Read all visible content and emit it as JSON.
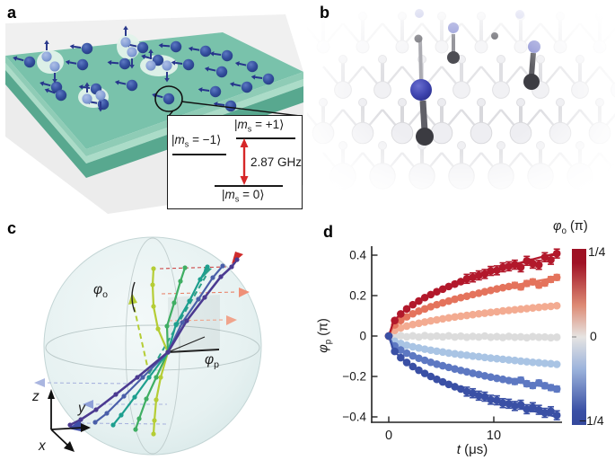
{
  "panels": {
    "a_label": "a",
    "b_label": "b",
    "c_label": "c",
    "d_label": "d"
  },
  "panel_a": {
    "inset": {
      "minus1": {
        "bar": "|",
        "m": "m",
        "sub": "s",
        "rest": " = −1⟩"
      },
      "plus1": {
        "bar": "|",
        "m": "m",
        "sub": "s",
        "rest": " = +1⟩"
      },
      "zero": {
        "bar": "|",
        "m": "m",
        "sub": "s",
        "rest": " = 0⟩"
      },
      "freq": "2.87 GHz",
      "arrow_color": "#d62728"
    },
    "colors": {
      "slab_top": "#79c2ab",
      "slab_rim": "#abdcc8",
      "slab_front": "#58a88f",
      "base": "#ececec",
      "spin_dark": "#35509f",
      "spin_light": "#8aa3d8"
    }
  },
  "panel_b": {
    "colors": {
      "lattice": "#ededf1",
      "nitrogen_blue": "#3f45b0",
      "vacancy_dark": "#3b3b41",
      "faint_purple": "#9ba0da"
    }
  },
  "panel_c": {
    "phi": "φ",
    "phi_o_sub": "o",
    "phi_p_sub": "p",
    "axis_z": "z",
    "axis_y": "y",
    "axis_x": "x",
    "trajectory_colors": [
      "#b5cd35",
      "#3fae63",
      "#1d9f8e",
      "#4a5fa9",
      "#4b3a91"
    ]
  },
  "chart_data": {
    "type": "scatter",
    "xlabel_italic": "t",
    "xlabel_unit": " (μs)",
    "ylabel_base": "φ",
    "ylabel_sub": "p",
    "ylabel_unit": " (π)",
    "xlim": [
      -0.8,
      16.6
    ],
    "ylim": [
      -0.47,
      0.47
    ],
    "x_ticks": [
      {
        "v": 0,
        "label": "0"
      },
      {
        "v": 10,
        "label": "10"
      }
    ],
    "y_ticks": [
      {
        "v": 0.4,
        "label": "0.4"
      },
      {
        "v": 0.2,
        "label": "0.2"
      },
      {
        "v": 0,
        "label": "0"
      },
      {
        "v": -0.2,
        "label": "−0.2"
      },
      {
        "v": -0.4,
        "label": "−0.4"
      }
    ],
    "colorbar": {
      "label_base": "φ",
      "label_sub": "o",
      "label_unit": " (π)",
      "tick_top": "1/4",
      "tick_mid": "0",
      "tick_bottom": "−1/4",
      "top_color": "#a01225",
      "mid_color": "#e6e4e2",
      "bottom_color": "#3a50a5"
    },
    "x": [
      0,
      0.57,
      1.14,
      1.71,
      2.29,
      2.86,
      3.43,
      4,
      4.57,
      5.14,
      5.71,
      6.29,
      6.86,
      7.43,
      8,
      8.57,
      9.14,
      9.71,
      10.29,
      10.86,
      11.43,
      12,
      12.57,
      13.14,
      13.71,
      14.29,
      14.86,
      15.43,
      16
    ],
    "series": [
      {
        "phi_o": "1/4",
        "color": "#b2182b",
        "fit_amplitude": 0.41,
        "show_line": true,
        "yerr": 0.022,
        "yerr_from": 13,
        "values": [
          0,
          0.077,
          0.109,
          0.134,
          0.155,
          0.173,
          0.19,
          0.205,
          0.219,
          0.232,
          0.245,
          0.257,
          0.269,
          0.283,
          0.29,
          0.3,
          0.307,
          0.322,
          0.325,
          0.34,
          0.345,
          0.353,
          0.34,
          0.372,
          0.358,
          0.352,
          0.39,
          0.377,
          0.408
        ]
      },
      {
        "phi_o": "1/6",
        "color": "#e4735c",
        "fit_amplitude": 0.29,
        "show_line": true,
        "yerr": 0.014,
        "yerr_from": 21,
        "values": [
          0,
          0.055,
          0.077,
          0.095,
          0.11,
          0.123,
          0.134,
          0.145,
          0.155,
          0.164,
          0.173,
          0.182,
          0.19,
          0.197,
          0.205,
          0.212,
          0.219,
          0.226,
          0.233,
          0.239,
          0.245,
          0.251,
          0.243,
          0.26,
          0.268,
          0.252,
          0.262,
          0.28,
          0.29
        ]
      },
      {
        "phi_o": "1/12",
        "color": "#f3ab91",
        "fit_amplitude": 0.15,
        "show_line": true,
        "yerr": 0,
        "yerr_from": 99,
        "values": [
          0,
          0.028,
          0.04,
          0.049,
          0.057,
          0.063,
          0.069,
          0.075,
          0.08,
          0.085,
          0.09,
          0.094,
          0.098,
          0.102,
          0.106,
          0.11,
          0.113,
          0.117,
          0.12,
          0.124,
          0.127,
          0.13,
          0.133,
          0.136,
          0.139,
          0.142,
          0.145,
          0.147,
          0.15
        ]
      },
      {
        "phi_o": "0",
        "color": "#dcdcdc",
        "fit_amplitude": 0,
        "show_line": false,
        "yerr": 0,
        "yerr_from": 99,
        "values": [
          0,
          -0.003,
          0.002,
          -0.004,
          0.001,
          -0.005,
          0.002,
          -0.003,
          0,
          -0.004,
          0.001,
          -0.005,
          -0.001,
          -0.006,
          -0.002,
          -0.005,
          0,
          -0.006,
          -0.003,
          -0.007,
          -0.002,
          -0.006,
          -0.004,
          -0.008,
          -0.003,
          -0.006,
          -0.005,
          -0.008,
          -0.006
        ]
      },
      {
        "phi_o": "−1/12",
        "color": "#a9c4e4",
        "fit_amplitude": -0.14,
        "show_line": true,
        "yerr": 0,
        "yerr_from": 99,
        "values": [
          0,
          -0.026,
          -0.037,
          -0.046,
          -0.053,
          -0.059,
          -0.065,
          -0.07,
          -0.075,
          -0.079,
          -0.084,
          -0.088,
          -0.092,
          -0.095,
          -0.099,
          -0.102,
          -0.106,
          -0.109,
          -0.112,
          -0.115,
          -0.118,
          -0.121,
          -0.124,
          -0.127,
          -0.13,
          -0.132,
          -0.135,
          -0.137,
          -0.14
        ]
      },
      {
        "phi_o": "−1/6",
        "color": "#5d78c2",
        "fit_amplitude": -0.26,
        "show_line": true,
        "yerr": 0.014,
        "yerr_from": 21,
        "values": [
          0,
          -0.049,
          -0.069,
          -0.085,
          -0.098,
          -0.11,
          -0.12,
          -0.13,
          -0.139,
          -0.147,
          -0.155,
          -0.163,
          -0.17,
          -0.177,
          -0.184,
          -0.19,
          -0.197,
          -0.203,
          -0.209,
          -0.214,
          -0.22,
          -0.225,
          -0.218,
          -0.236,
          -0.245,
          -0.232,
          -0.246,
          -0.255,
          -0.262
        ]
      },
      {
        "phi_o": "−1/4",
        "color": "#3a50a5",
        "fit_amplitude": -0.4,
        "show_line": true,
        "yerr": 0.022,
        "yerr_from": 13,
        "values": [
          0,
          -0.076,
          -0.107,
          -0.131,
          -0.151,
          -0.169,
          -0.185,
          -0.2,
          -0.214,
          -0.227,
          -0.239,
          -0.251,
          -0.262,
          -0.275,
          -0.283,
          -0.295,
          -0.3,
          -0.315,
          -0.318,
          -0.332,
          -0.335,
          -0.346,
          -0.34,
          -0.362,
          -0.352,
          -0.365,
          -0.38,
          -0.372,
          -0.392
        ]
      }
    ]
  }
}
